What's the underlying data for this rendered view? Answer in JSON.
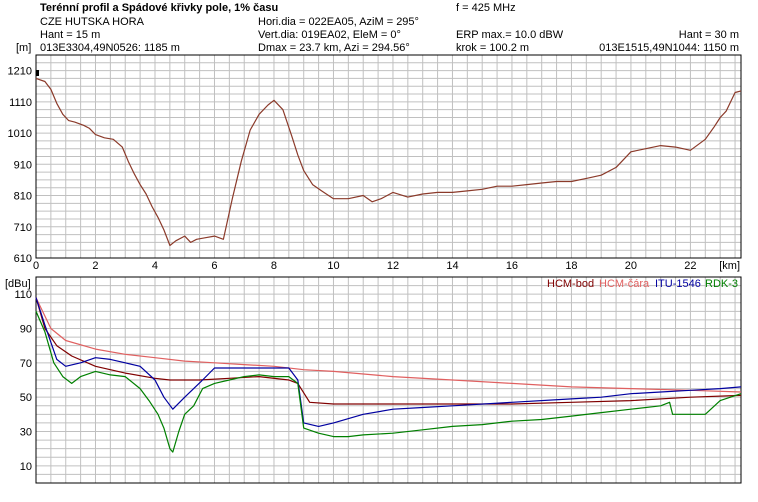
{
  "header": {
    "title": "Terénní profil a Spádové křivky pole, 1% času",
    "frequency": "f = 425 MHz",
    "station": "CZE HUTSKA HORA",
    "hori_dia": "Hori.dia = 022EA05, AziM = 295°",
    "hant_tx": "Hant = 15 m",
    "vert_dia": "Vert.dia: 019EA02, EleM = 0°",
    "erp": "ERP max.= 10.0 dBW",
    "hant_rx": "Hant = 30 m"
  },
  "info_row": {
    "unit": "[m]",
    "start_point": "013E3304,49N0526: 1185 m",
    "dmax": "Dmax = 23.7 km,  Azi = 294.56°",
    "step": "krok = 100.2 m",
    "end_point": "013E1515,49N1044: 1150 m"
  },
  "colors": {
    "terrain": "#8b3a2a",
    "hcm_bod": "#800000",
    "hcm_cara": "#e06060",
    "itu_1546": "#0000a0",
    "rdk_3": "#008000",
    "grid": "#c0c0c0"
  },
  "chart_data": [
    {
      "type": "line",
      "ylabel": "[m]",
      "xlabel": "[km]",
      "xlim": [
        0,
        23.7
      ],
      "ylim": [
        610,
        1260
      ],
      "x_ticks": [
        "0",
        "2",
        "4",
        "6",
        "8",
        "10",
        "12",
        "14",
        "16",
        "18",
        "20",
        "22"
      ],
      "y_ticks": [
        "1210",
        "1110",
        "1010",
        "910",
        "810",
        "710",
        "610"
      ],
      "grid": true,
      "series": [
        {
          "key": "terrain",
          "x": [
            0,
            0.3,
            0.5,
            0.7,
            0.9,
            1.1,
            1.3,
            1.6,
            1.8,
            2.0,
            2.3,
            2.6,
            2.9,
            3.1,
            3.3,
            3.5,
            3.7,
            3.9,
            4.1,
            4.3,
            4.5,
            4.7,
            5.0,
            5.2,
            5.4,
            5.7,
            6.0,
            6.3,
            6.6,
            6.9,
            7.2,
            7.5,
            7.8,
            8.0,
            8.3,
            8.6,
            8.8,
            9.0,
            9.3,
            9.6,
            10.0,
            10.5,
            11.0,
            11.3,
            11.6,
            12.0,
            12.5,
            13.0,
            13.5,
            14.0,
            14.5,
            15.0,
            15.5,
            16.0,
            16.5,
            17.0,
            17.5,
            18.0,
            18.5,
            19.0,
            19.5,
            20.0,
            20.5,
            21.0,
            21.5,
            22.0,
            22.5,
            22.8,
            23.0,
            23.2,
            23.4,
            23.5,
            23.7
          ],
          "y": [
            1185,
            1175,
            1150,
            1105,
            1070,
            1050,
            1045,
            1035,
            1025,
            1005,
            995,
            990,
            965,
            920,
            880,
            845,
            815,
            775,
            740,
            700,
            650,
            665,
            680,
            660,
            670,
            675,
            680,
            670,
            800,
            920,
            1020,
            1070,
            1100,
            1115,
            1085,
            1000,
            940,
            890,
            845,
            825,
            800,
            800,
            810,
            790,
            800,
            820,
            805,
            815,
            820,
            820,
            825,
            830,
            840,
            840,
            845,
            850,
            855,
            855,
            865,
            875,
            900,
            950,
            960,
            970,
            965,
            955,
            990,
            1030,
            1060,
            1080,
            1120,
            1140,
            1145
          ]
        }
      ]
    },
    {
      "type": "line",
      "ylabel": "[dBu]",
      "xlim": [
        0,
        23.7
      ],
      "ylim": [
        0,
        120
      ],
      "y_ticks": [
        "110",
        "90",
        "70",
        "50",
        "30",
        "10"
      ],
      "grid": true,
      "series": [
        {
          "key": "hcm_bod",
          "name": "HCM-bod",
          "x": [
            0,
            0.3,
            0.7,
            1.2,
            2.0,
            3.0,
            4.0,
            4.5,
            5.5,
            6.5,
            7.5,
            8.5,
            8.8,
            9.2,
            10.0,
            12.0,
            14.0,
            16.0,
            18.0,
            20.0,
            22.0,
            23.7
          ],
          "y": [
            108,
            90,
            80,
            74,
            68,
            64,
            61,
            60,
            60,
            61,
            62,
            60,
            58,
            47,
            46,
            46,
            46,
            46,
            47,
            48,
            50,
            51
          ]
        },
        {
          "key": "hcm_cara",
          "name": "HCM-čára",
          "x": [
            0,
            0.5,
            1.0,
            2.0,
            3.0,
            4.0,
            5.0,
            6.0,
            7.0,
            8.0,
            9.0,
            10.0,
            12.0,
            14.0,
            16.0,
            18.0,
            20.0,
            22.0,
            23.7
          ],
          "y": [
            108,
            90,
            83,
            78,
            75,
            73,
            71,
            70,
            69,
            68,
            66,
            65,
            62,
            60,
            58,
            56,
            55,
            54,
            53
          ]
        },
        {
          "key": "itu_1546",
          "name": "ITU-1546",
          "x": [
            0,
            0.3,
            0.7,
            1.0,
            1.5,
            2.0,
            2.5,
            3.0,
            3.5,
            4.0,
            4.3,
            4.6,
            5.0,
            5.3,
            5.6,
            6.0,
            6.5,
            7.0,
            7.5,
            8.0,
            8.5,
            8.8,
            9.0,
            9.5,
            10.0,
            11.0,
            12.0,
            13.0,
            14.0,
            16.0,
            18.0,
            19.0,
            20.0,
            21.0,
            22.0,
            23.0,
            23.7
          ],
          "y": [
            108,
            92,
            72,
            68,
            70,
            73,
            72,
            70,
            68,
            60,
            50,
            43,
            50,
            55,
            60,
            67,
            67,
            67,
            67,
            67,
            67,
            60,
            35,
            33,
            35,
            40,
            43,
            44,
            45,
            47,
            49,
            50,
            52,
            53,
            54,
            55,
            56
          ]
        },
        {
          "key": "rdk_3",
          "name": "RDK-3",
          "x": [
            0,
            0.3,
            0.6,
            0.9,
            1.2,
            1.5,
            2.0,
            2.5,
            3.0,
            3.5,
            3.8,
            4.1,
            4.3,
            4.5,
            4.6,
            4.8,
            5.0,
            5.3,
            5.6,
            6.0,
            6.5,
            7.0,
            7.5,
            8.0,
            8.5,
            8.8,
            9.0,
            9.5,
            10.0,
            10.5,
            11.0,
            12.0,
            13.0,
            14.0,
            15.0,
            16.0,
            17.0,
            18.0,
            19.0,
            20.0,
            21.0,
            21.3,
            21.4,
            21.5,
            22.0,
            22.5,
            23.0,
            23.7
          ],
          "y": [
            100,
            88,
            70,
            62,
            58,
            62,
            65,
            63,
            62,
            55,
            48,
            40,
            32,
            20,
            18,
            30,
            40,
            45,
            55,
            58,
            60,
            62,
            63,
            62,
            62,
            58,
            32,
            29,
            27,
            27,
            28,
            29,
            31,
            33,
            34,
            36,
            37,
            39,
            41,
            43,
            45,
            47,
            40,
            40,
            40,
            40,
            48,
            52
          ]
        }
      ]
    }
  ]
}
